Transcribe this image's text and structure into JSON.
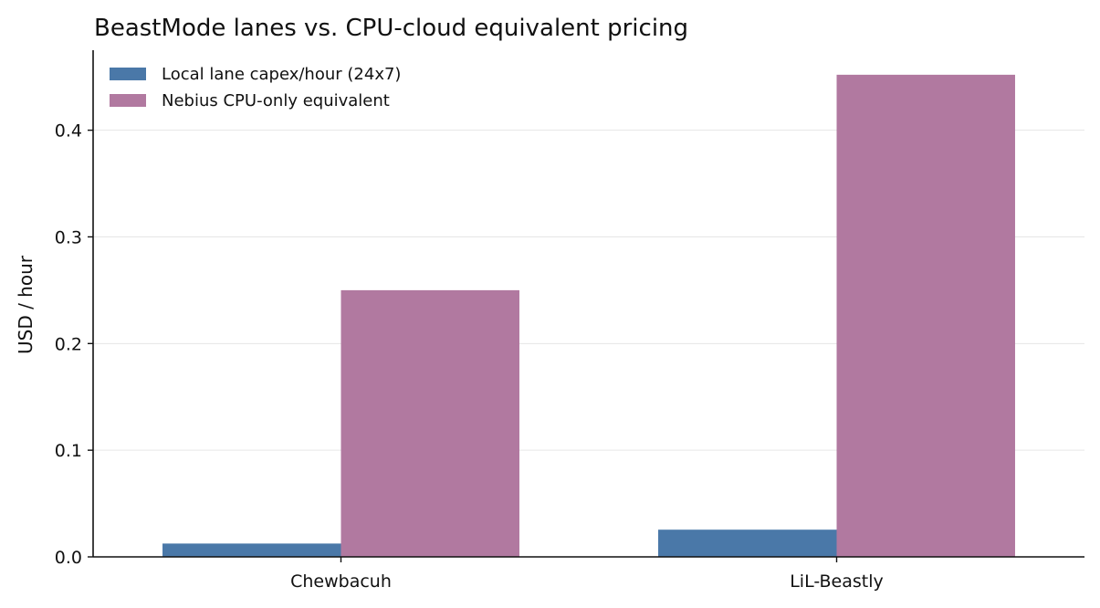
{
  "chart_data": {
    "type": "bar",
    "title": "BeastMode lanes vs. CPU-cloud equivalent pricing",
    "ylabel": "USD / hour",
    "xlabel": "",
    "categories": [
      "Chewbacuh",
      "LiL-Beastly"
    ],
    "series": [
      {
        "name": "Local lane capex/hour (24x7)",
        "color": "#4a78a8",
        "values": [
          0.0125,
          0.0255
        ]
      },
      {
        "name": "Nebius CPU-only equivalent",
        "color": "#b179a0",
        "values": [
          0.25,
          0.452
        ]
      }
    ],
    "ylim": [
      0,
      0.475
    ],
    "yticks": [
      "0.0",
      "0.1",
      "0.2",
      "0.3",
      "0.4"
    ],
    "grid": true,
    "legend": "top-left"
  }
}
